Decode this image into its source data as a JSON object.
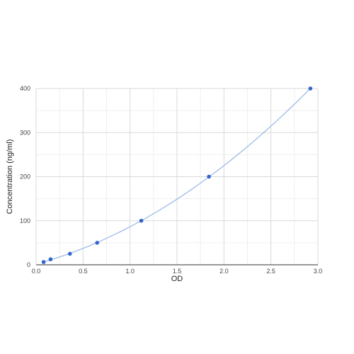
{
  "chart_data": {
    "type": "scatter",
    "title": "",
    "xlabel": "OD",
    "ylabel": "Concentration (ng/ml)",
    "xlim": [
      0,
      3
    ],
    "ylim": [
      0,
      400
    ],
    "x_ticks": [
      0,
      0.5,
      1,
      1.5,
      2,
      2.5,
      3
    ],
    "x_tick_labels": [
      "0.0",
      "0.5",
      "1.0",
      "1.5",
      "2.0",
      "2.5",
      "3.0"
    ],
    "y_ticks": [
      0,
      100,
      200,
      300,
      400
    ],
    "y_tick_labels": [
      "0",
      "100",
      "200",
      "300",
      "400"
    ],
    "x_minor_step": 0.25,
    "y_minor_step": 50,
    "grid": true,
    "legend": "none",
    "series": [
      {
        "points": [
          {
            "x": 0.08,
            "y": 6.25
          },
          {
            "x": 0.154,
            "y": 12.5
          },
          {
            "x": 0.36,
            "y": 25
          },
          {
            "x": 0.65,
            "y": 50
          },
          {
            "x": 1.12,
            "y": 100
          },
          {
            "x": 1.84,
            "y": 200
          },
          {
            "x": 2.92,
            "y": 400
          }
        ],
        "trendline": "polynomial",
        "color": "#3366cc",
        "trendline_color": "#9dbbe8"
      }
    ]
  }
}
